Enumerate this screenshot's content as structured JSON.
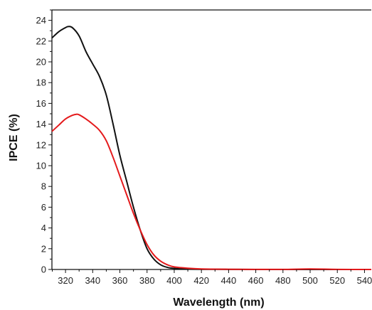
{
  "chart_data": {
    "type": "line",
    "title": "",
    "xlabel": "Wavelength (nm)",
    "ylabel": "IPCE (%)",
    "xlim": [
      310,
      545
    ],
    "ylim": [
      0,
      25
    ],
    "x_ticks": [
      320,
      340,
      360,
      380,
      400,
      420,
      440,
      460,
      480,
      500,
      520,
      540
    ],
    "y_ticks": [
      0,
      2,
      4,
      6,
      8,
      10,
      12,
      14,
      16,
      18,
      20,
      22,
      24
    ],
    "grid": false,
    "legend": "none",
    "series": [
      {
        "color": "#111111",
        "x": [
          310,
          315,
          320,
          322,
          325,
          330,
          335,
          340,
          345,
          350,
          355,
          360,
          365,
          370,
          375,
          380,
          385,
          390,
          395,
          400,
          410,
          420,
          440,
          460,
          480,
          500,
          520,
          545
        ],
        "y": [
          22.3,
          22.9,
          23.3,
          23.4,
          23.3,
          22.5,
          21.0,
          19.8,
          18.6,
          16.8,
          14.0,
          11.0,
          8.5,
          6.0,
          3.8,
          2.0,
          1.0,
          0.45,
          0.2,
          0.1,
          0.04,
          0.02,
          0.01,
          0.0,
          0.0,
          0.0,
          0.0,
          0.0
        ]
      },
      {
        "color": "#e41a1c",
        "x": [
          310,
          315,
          320,
          325,
          328,
          330,
          335,
          340,
          345,
          350,
          355,
          360,
          365,
          370,
          375,
          380,
          385,
          390,
          395,
          400,
          410,
          420,
          440,
          460,
          480,
          500,
          520,
          545
        ],
        "y": [
          13.3,
          13.9,
          14.5,
          14.85,
          14.95,
          14.9,
          14.5,
          14.0,
          13.4,
          12.4,
          10.8,
          9.0,
          7.2,
          5.4,
          3.8,
          2.4,
          1.4,
          0.8,
          0.45,
          0.25,
          0.12,
          0.05,
          0.02,
          0.01,
          0.01,
          0.05,
          0.01,
          0.0
        ]
      }
    ]
  }
}
